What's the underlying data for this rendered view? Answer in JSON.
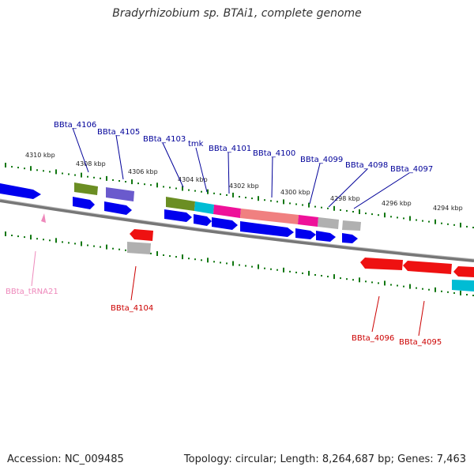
{
  "title": "Bradyrhizobium sp. BTAi1, complete genome",
  "footer": {
    "accession": "Accession: NC_009485",
    "summary": "Topology: circular; Length: 8,264,687 bp; Genes: 7,463"
  },
  "ticks_top": [
    "4310 kbp",
    "4308 kbp",
    "4306 kbp",
    "4304 kbp",
    "4302 kbp",
    "4300 kbp",
    "4298 kbp",
    "4296 kbp",
    "4294 kbp"
  ],
  "labels_top": [
    "BBta_4106",
    "BBta_4105",
    "BBta_4103",
    "tmk",
    "BBta_4101",
    "BBta_4100",
    "BBta_4099",
    "BBta_4098",
    "BBta_4097"
  ],
  "labels_bottom": [
    "BBta_tRNA21",
    "BBta_4104",
    "BBta_4096",
    "BBta_4095"
  ],
  "colors": {
    "cds": "#0000ee",
    "label_top": "#000099",
    "label_bottom": "#cc0000",
    "trna": "#ee88bb",
    "red": "#ee1111",
    "olive": "#6b8e23",
    "slate": "#6a5acd",
    "cyan": "#00bcd4",
    "magenta": "#ee1199",
    "salmon": "#f08080",
    "gray": "#b0b0b0",
    "axis": "#777777",
    "tick": "#117711"
  }
}
